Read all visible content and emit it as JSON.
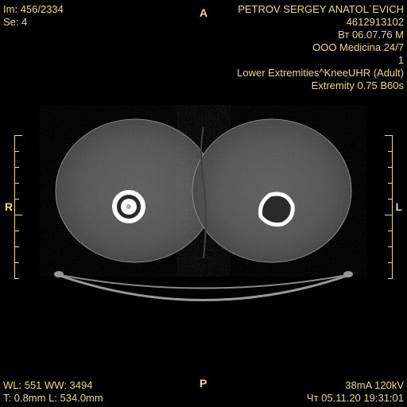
{
  "top_left": {
    "image_num": "Im: 456/2334",
    "series": "Se: 4"
  },
  "top_right": {
    "patient": "PETROV SERGEY ANATOL`EVICH",
    "id": "4612913102",
    "dob": "Вт 06.07.76 M",
    "facility": "OOO Medicina 24/7",
    "series_num": "1",
    "protocol": "Lower Extremities^KneeUHR (Adult)",
    "params": "Extremity  0.75  B60s"
  },
  "bottom_left": {
    "window": "WL: 551 WW: 3494",
    "thickness": "T: 0.8mm L: 534.0mm"
  },
  "bottom_right": {
    "exposure": "38mA 120kV",
    "datetime": "Чт 05.11.20 19:31:01"
  },
  "markers": {
    "anterior": "A",
    "posterior": "P",
    "right": "R",
    "left": "L"
  },
  "colors": {
    "text": "#e8d890",
    "bg": "#000000",
    "tissue_outer": "#4a4a4a",
    "tissue_inner": "#5a5a5a",
    "bone": "#ffffff",
    "table": "#888888"
  }
}
